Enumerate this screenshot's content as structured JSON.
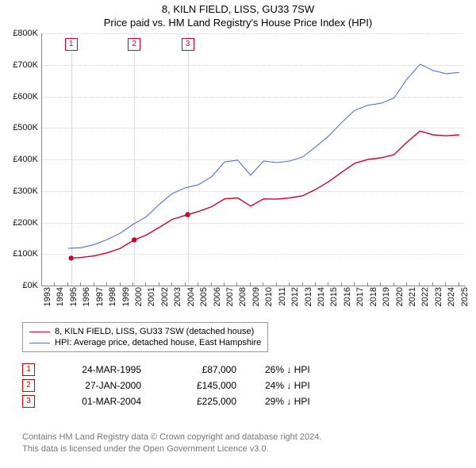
{
  "title": {
    "line1": "8, KILN FIELD, LISS, GU33 7SW",
    "line2": "Price paid vs. HM Land Registry's House Price Index (HPI)"
  },
  "chart": {
    "type": "line",
    "background_color": "#ffffff",
    "grid_color": "rgba(0,0,0,0.15)",
    "axis_color": "#888888",
    "x": {
      "min": 1993,
      "max": 2025.5,
      "ticks": [
        1993,
        1994,
        1995,
        1996,
        1997,
        1998,
        1999,
        2000,
        2001,
        2002,
        2003,
        2004,
        2005,
        2006,
        2007,
        2008,
        2009,
        2010,
        2011,
        2012,
        2013,
        2014,
        2015,
        2016,
        2017,
        2018,
        2019,
        2020,
        2021,
        2022,
        2023,
        2024,
        2025
      ]
    },
    "y": {
      "min": 0,
      "max": 800000,
      "tick_step": 100000,
      "tick_prefix": "£",
      "tick_suffix": "K",
      "tick_divide": 1000
    },
    "series": [
      {
        "id": "price_paid",
        "label": "8, KILN FIELD, LISS, GU33 7SW (detached house)",
        "color": "#d4002a",
        "line_width": 1.4,
        "points": [
          [
            1995.23,
            87000
          ],
          [
            1996,
            89000
          ],
          [
            1997,
            94000
          ],
          [
            1998,
            104000
          ],
          [
            1999,
            118000
          ],
          [
            2000.07,
            145000
          ],
          [
            2001,
            160000
          ],
          [
            2002,
            185000
          ],
          [
            2003,
            210000
          ],
          [
            2004.17,
            225000
          ],
          [
            2005,
            235000
          ],
          [
            2006,
            250000
          ],
          [
            2007,
            275000
          ],
          [
            2008,
            278000
          ],
          [
            2009,
            252000
          ],
          [
            2010,
            275000
          ],
          [
            2011,
            274000
          ],
          [
            2012,
            278000
          ],
          [
            2013,
            285000
          ],
          [
            2014,
            305000
          ],
          [
            2015,
            330000
          ],
          [
            2016,
            360000
          ],
          [
            2017,
            388000
          ],
          [
            2018,
            400000
          ],
          [
            2019,
            405000
          ],
          [
            2020,
            415000
          ],
          [
            2021,
            455000
          ],
          [
            2022,
            490000
          ],
          [
            2023,
            478000
          ],
          [
            2024,
            475000
          ],
          [
            2025,
            478000
          ]
        ],
        "markers": [
          {
            "id": "1",
            "x": 1995.23,
            "y": 87000
          },
          {
            "id": "2",
            "x": 2000.07,
            "y": 145000
          },
          {
            "id": "3",
            "x": 2004.17,
            "y": 225000
          }
        ]
      },
      {
        "id": "hpi",
        "label": "HPI: Average price, detached house, East Hampshire",
        "color": "#4f74d1",
        "line_width": 1.1,
        "points": [
          [
            1995,
            118000
          ],
          [
            1996,
            120000
          ],
          [
            1997,
            130000
          ],
          [
            1998,
            146000
          ],
          [
            1999,
            166000
          ],
          [
            2000,
            195000
          ],
          [
            2001,
            218000
          ],
          [
            2002,
            258000
          ],
          [
            2003,
            292000
          ],
          [
            2004,
            310000
          ],
          [
            2005,
            320000
          ],
          [
            2006,
            345000
          ],
          [
            2007,
            392000
          ],
          [
            2008,
            398000
          ],
          [
            2009,
            350000
          ],
          [
            2010,
            395000
          ],
          [
            2011,
            390000
          ],
          [
            2012,
            395000
          ],
          [
            2013,
            408000
          ],
          [
            2014,
            440000
          ],
          [
            2015,
            475000
          ],
          [
            2016,
            518000
          ],
          [
            2017,
            556000
          ],
          [
            2018,
            572000
          ],
          [
            2019,
            578000
          ],
          [
            2020,
            595000
          ],
          [
            2021,
            655000
          ],
          [
            2022,
            702000
          ],
          [
            2023,
            682000
          ],
          [
            2024,
            672000
          ],
          [
            2025,
            676000
          ]
        ]
      }
    ],
    "marker_box_color": "#d4002a"
  },
  "legend": {
    "items": [
      {
        "series": "price_paid"
      },
      {
        "series": "hpi"
      }
    ]
  },
  "events": [
    {
      "id": "1",
      "date": "24-MAR-1995",
      "price": "£87,000",
      "delta": "26% ↓ HPI"
    },
    {
      "id": "2",
      "date": "27-JAN-2000",
      "price": "£145,000",
      "delta": "24% ↓ HPI"
    },
    {
      "id": "3",
      "date": "01-MAR-2004",
      "price": "£225,000",
      "delta": "29% ↓ HPI"
    }
  ],
  "footnote": {
    "line1": "Contains HM Land Registry data © Crown copyright and database right 2024.",
    "line2": "This data is licensed under the Open Government Licence v3.0."
  }
}
